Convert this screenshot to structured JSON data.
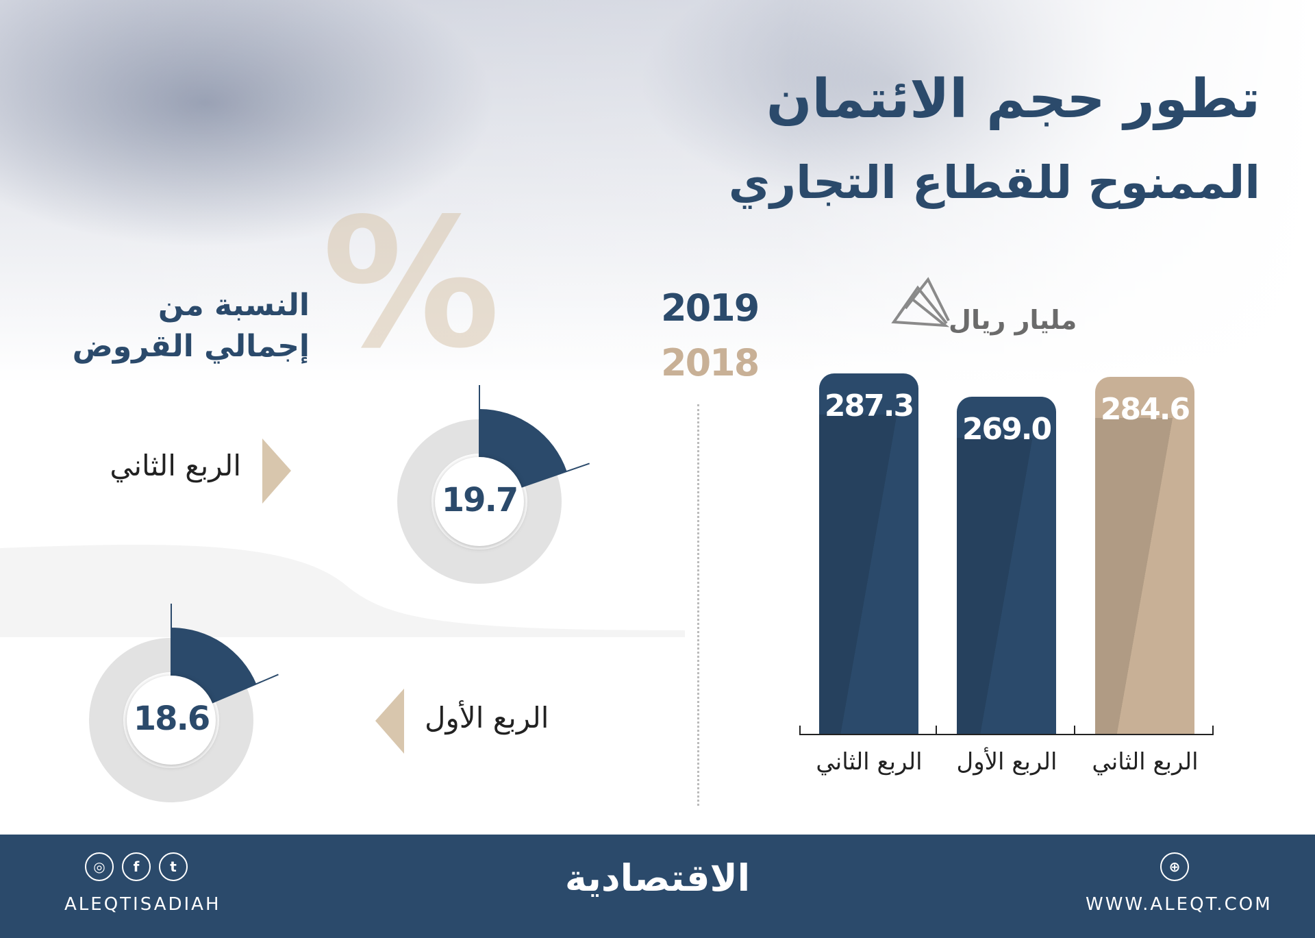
{
  "title": {
    "line1": "تطور حجم الائتمان",
    "line2": "الممنوح للقطاع التجاري"
  },
  "colors": {
    "navy": "#2b4a6b",
    "tan": "#c8b096",
    "donut_track": "#e2e2e2"
  },
  "chart_data": [
    {
      "type": "bar",
      "unit": "مليار ريال",
      "legend": [
        {
          "name": "2019",
          "color": "#2b4a6b"
        },
        {
          "name": "2018",
          "color": "#c8b096"
        }
      ],
      "categories": [
        "الربع الثاني",
        "الربع الأول",
        "الربع الثاني"
      ],
      "series_of_bar": [
        "2019",
        "2019",
        "2018"
      ],
      "values": [
        287.3,
        269.0,
        284.6
      ],
      "value_labels": [
        "287.3",
        "269.0",
        "284.6"
      ],
      "ylim": [
        0,
        300
      ]
    },
    {
      "type": "pie",
      "title_line1": "النسبة من",
      "title_line2": "إجمالي القروض",
      "symbol": "%",
      "items": [
        {
          "label": "الربع الثاني",
          "value": 19.7,
          "value_label": "19.7"
        },
        {
          "label": "الربع الأول",
          "value": 18.6,
          "value_label": "18.6"
        }
      ]
    }
  ],
  "footer": {
    "logo": "الاقتصادية",
    "handle": "ALEQTISADIAH",
    "website": "WWW.ALEQT.COM",
    "icons": [
      "instagram-icon",
      "facebook-icon",
      "twitter-icon",
      "dribbble-globe-icon"
    ]
  }
}
